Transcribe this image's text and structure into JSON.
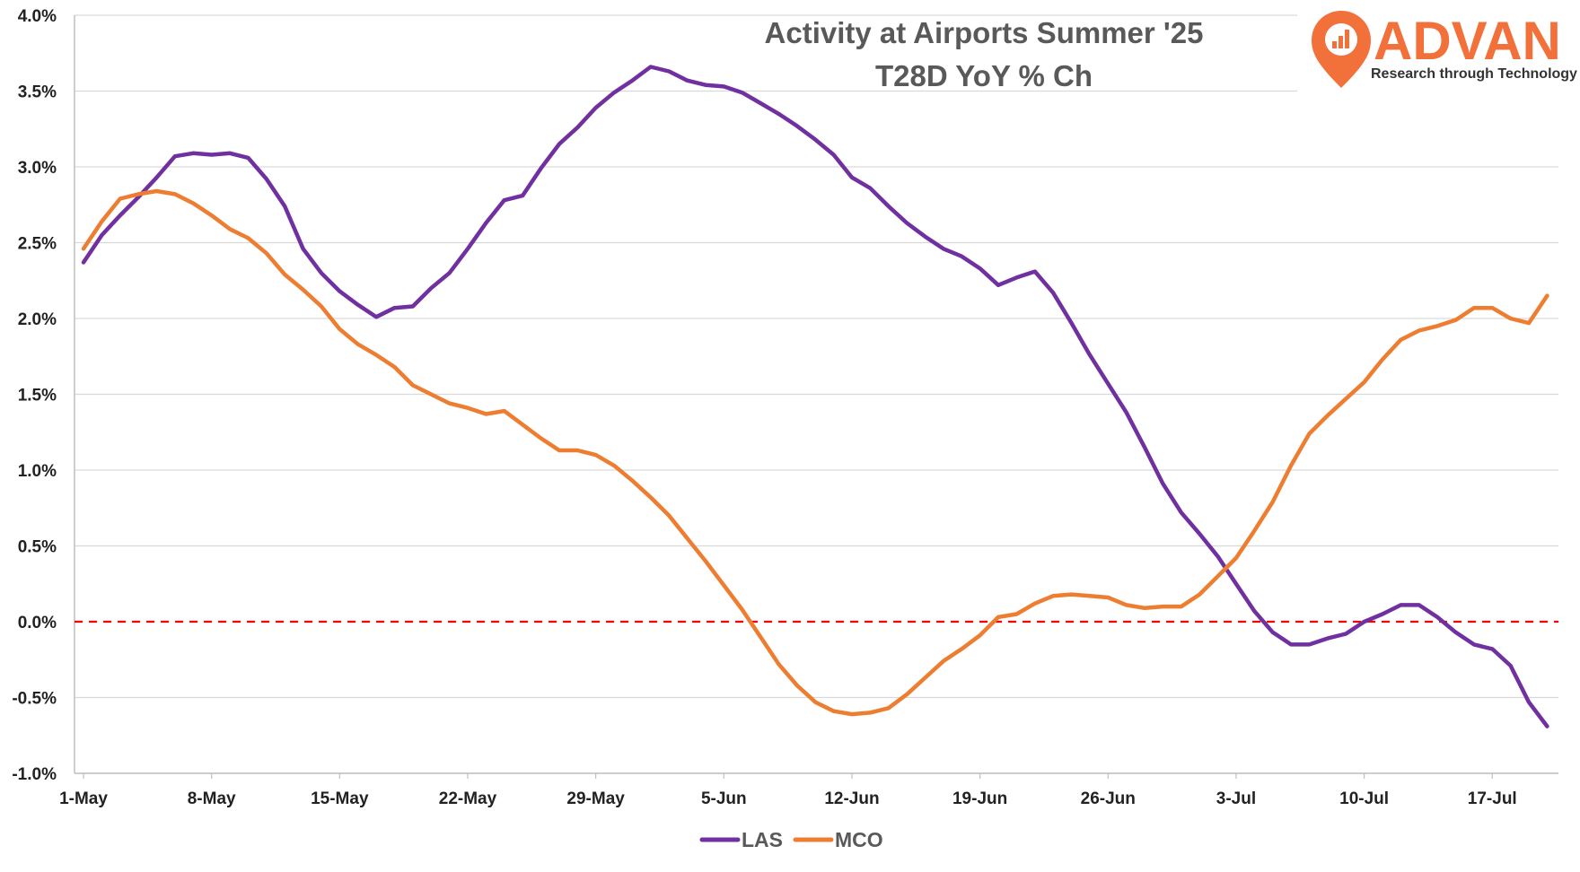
{
  "logo": {
    "name": "ADVAN",
    "tagline": "Research through Technology",
    "color": "#f2703a"
  },
  "chart_data": {
    "type": "line",
    "title": "Activity at Airports Summer '25",
    "subtitle": "T28D YoY % Ch",
    "xlabel": "",
    "ylabel": "",
    "ylim": [
      -1.0,
      4.0
    ],
    "y_ticks": [
      "4.0%",
      "3.5%",
      "3.0%",
      "2.5%",
      "2.0%",
      "1.5%",
      "1.0%",
      "0.5%",
      "0.0%",
      "-0.5%",
      "-1.0%"
    ],
    "y_tick_values": [
      4.0,
      3.5,
      3.0,
      2.5,
      2.0,
      1.5,
      1.0,
      0.5,
      0.0,
      -0.5,
      -1.0
    ],
    "x_tick_labels": [
      "1-May",
      "8-May",
      "15-May",
      "22-May",
      "29-May",
      "5-Jun",
      "12-Jun",
      "19-Jun",
      "26-Jun",
      "3-Jul",
      "10-Jul",
      "17-Jul"
    ],
    "x_start": "1-May",
    "x_end": "21-Jul",
    "grid": "horizontal",
    "legend_position": "bottom",
    "reference_line": {
      "y": 0.0,
      "style": "dashed",
      "color": "#ff0000"
    },
    "series": [
      {
        "name": "LAS",
        "color": "#7030a0",
        "values": [
          2.37,
          2.55,
          2.68,
          2.8,
          2.93,
          3.07,
          3.09,
          3.08,
          3.09,
          3.06,
          2.92,
          2.74,
          2.46,
          2.3,
          2.18,
          2.09,
          2.01,
          2.07,
          2.08,
          2.2,
          2.3,
          2.46,
          2.63,
          2.78,
          2.81,
          2.99,
          3.15,
          3.26,
          3.39,
          3.49,
          3.57,
          3.66,
          3.63,
          3.57,
          3.54,
          3.53,
          3.49,
          3.42,
          3.35,
          3.27,
          3.18,
          3.08,
          2.93,
          2.86,
          2.74,
          2.63,
          2.54,
          2.46,
          2.41,
          2.33,
          2.22,
          2.27,
          2.31,
          2.17,
          1.97,
          1.76,
          1.57,
          1.38,
          1.15,
          0.91,
          0.72,
          0.58,
          0.43,
          0.25,
          0.07,
          -0.07,
          -0.15,
          -0.15,
          -0.11,
          -0.08,
          0.0,
          0.05,
          0.11,
          0.11,
          0.03,
          -0.07,
          -0.15,
          -0.18,
          -0.29,
          -0.53,
          -0.69
        ]
      },
      {
        "name": "MCO",
        "color": "#ed7d31",
        "values": [
          2.46,
          2.64,
          2.79,
          2.82,
          2.84,
          2.82,
          2.76,
          2.68,
          2.59,
          2.53,
          2.43,
          2.29,
          2.19,
          2.08,
          1.93,
          1.83,
          1.76,
          1.68,
          1.56,
          1.5,
          1.44,
          1.41,
          1.37,
          1.39,
          1.3,
          1.21,
          1.13,
          1.13,
          1.1,
          1.03,
          0.93,
          0.82,
          0.7,
          0.55,
          0.4,
          0.24,
          0.08,
          -0.1,
          -0.28,
          -0.42,
          -0.53,
          -0.59,
          -0.61,
          -0.6,
          -0.57,
          -0.48,
          -0.37,
          -0.26,
          -0.18,
          -0.09,
          0.03,
          0.05,
          0.12,
          0.17,
          0.18,
          0.17,
          0.16,
          0.11,
          0.09,
          0.1,
          0.1,
          0.18,
          0.3,
          0.42,
          0.6,
          0.79,
          1.03,
          1.24,
          1.36,
          1.47,
          1.58,
          1.73,
          1.86,
          1.92,
          1.95,
          1.99,
          2.07,
          2.07,
          2.0,
          1.97,
          2.15
        ]
      }
    ]
  }
}
